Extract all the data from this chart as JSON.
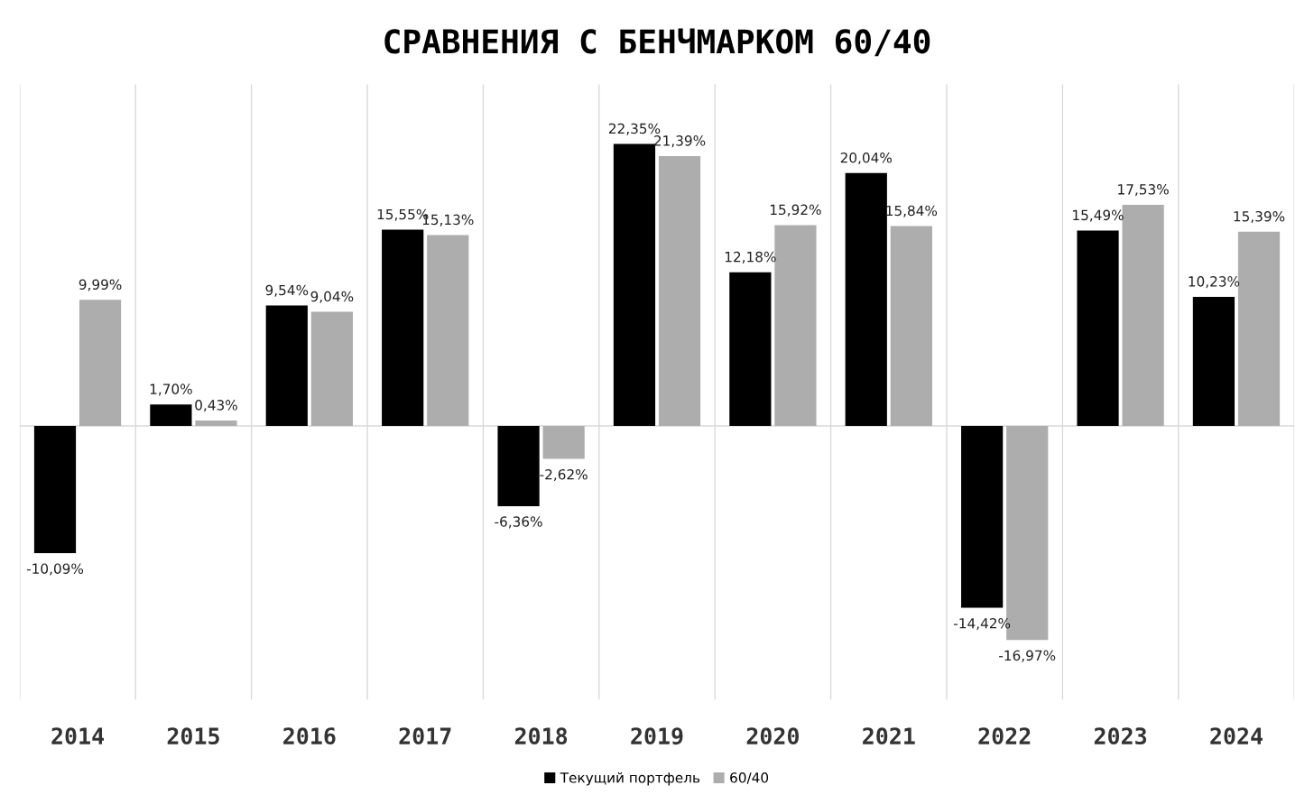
{
  "chart_data": {
    "type": "bar",
    "title": "СРАВНЕНИЯ С БЕНЧМАРКОМ 60/40",
    "categories": [
      "2014",
      "2015",
      "2016",
      "2017",
      "2018",
      "2019",
      "2020",
      "2021",
      "2022",
      "2023",
      "2024"
    ],
    "series": [
      {
        "name": "Текущий портфель",
        "color": "#000000",
        "values": [
          -10.09,
          1.7,
          9.54,
          15.55,
          -6.36,
          22.35,
          12.18,
          20.04,
          -14.42,
          15.49,
          10.23
        ],
        "value_labels": [
          "-10,09%",
          "1,70%",
          "9,54%",
          "15,55%",
          "-6,36%",
          "22,35%",
          "12,18%",
          "20,04%",
          "-14,42%",
          "15,49%",
          "10,23%"
        ]
      },
      {
        "name": "60/40",
        "color": "#adadad",
        "values": [
          9.99,
          0.43,
          9.04,
          15.13,
          -2.62,
          21.39,
          15.92,
          15.84,
          -16.97,
          17.53,
          15.39
        ],
        "value_labels": [
          "9,99%",
          "0,43%",
          "9,04%",
          "15,13%",
          "-2,62%",
          "21,39%",
          "15,92%",
          "15,84%",
          "-16,97%",
          "17,53%",
          "15,39%"
        ]
      }
    ],
    "tick_labels": "x",
    "grid": "x",
    "legend": "bottom"
  }
}
